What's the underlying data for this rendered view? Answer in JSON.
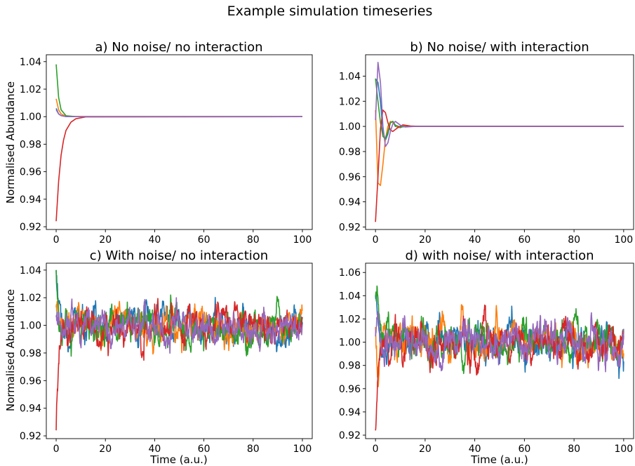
{
  "figure": {
    "suptitle": "Example simulation timeseries",
    "colors": [
      "#1f77b4",
      "#ff7f0e",
      "#2ca02c",
      "#d62728",
      "#9467bd"
    ]
  },
  "chart_data": [
    {
      "type": "line",
      "title": "a) No noise/ no interaction",
      "xlabel": "",
      "ylabel": "Normalised Abundance",
      "xlim": [
        -4,
        104
      ],
      "ylim": [
        0.918,
        1.045
      ],
      "xticks": [
        "0",
        "20",
        "40",
        "60",
        "80",
        "100"
      ],
      "yticks": [
        "0.92",
        "0.94",
        "0.96",
        "0.98",
        "1.00",
        "1.02",
        "1.04"
      ],
      "noise": false,
      "interaction": false,
      "series": [
        {
          "color": "#1f77b4",
          "points": [
            [
              0,
              1.006
            ],
            [
              1,
              1.002
            ],
            [
              2,
              1.0008
            ],
            [
              4,
              1.0001
            ],
            [
              8,
              1.0
            ],
            [
              100,
              1.0
            ]
          ]
        },
        {
          "color": "#ff7f0e",
          "points": [
            [
              0,
              1.013
            ],
            [
              1,
              1.005
            ],
            [
              2,
              1.002
            ],
            [
              4,
              1.0003
            ],
            [
              8,
              1.0
            ],
            [
              100,
              1.0
            ]
          ]
        },
        {
          "color": "#2ca02c",
          "points": [
            [
              0,
              1.038
            ],
            [
              1,
              1.014
            ],
            [
              2,
              1.005
            ],
            [
              4,
              1.0007
            ],
            [
              8,
              1.0
            ],
            [
              100,
              1.0
            ]
          ]
        },
        {
          "color": "#d62728",
          "points": [
            [
              0,
              0.924
            ],
            [
              1,
              0.953
            ],
            [
              2,
              0.972
            ],
            [
              3,
              0.983
            ],
            [
              4,
              0.99
            ],
            [
              6,
              0.996
            ],
            [
              8,
              0.9985
            ],
            [
              12,
              0.9998
            ],
            [
              100,
              1.0
            ]
          ]
        },
        {
          "color": "#9467bd",
          "points": [
            [
              0,
              1.005
            ],
            [
              1,
              1.002
            ],
            [
              2,
              1.0008
            ],
            [
              4,
              1.0001
            ],
            [
              8,
              1.0
            ],
            [
              100,
              1.0
            ]
          ]
        }
      ]
    },
    {
      "type": "line",
      "title": "b) No noise/ with interaction",
      "xlabel": "",
      "ylabel": "",
      "xlim": [
        -4,
        104
      ],
      "ylim": [
        0.918,
        1.057
      ],
      "xticks": [
        "0",
        "20",
        "40",
        "60",
        "80",
        "100"
      ],
      "yticks": [
        "0.92",
        "0.94",
        "0.96",
        "0.98",
        "1.00",
        "1.02",
        "1.04"
      ],
      "noise": false,
      "interaction": true,
      "series": [
        {
          "color": "#1f77b4",
          "points": [
            [
              0,
              1.038
            ],
            [
              1,
              1.035
            ],
            [
              2,
              1.02
            ],
            [
              3,
              0.996
            ],
            [
              4,
              0.989
            ],
            [
              5,
              0.994
            ],
            [
              6,
              1.003
            ],
            [
              7,
              1.004
            ],
            [
              8,
              1.0
            ],
            [
              10,
              0.999
            ],
            [
              12,
              1.0008
            ],
            [
              15,
              1.0
            ],
            [
              100,
              1.0
            ]
          ]
        },
        {
          "color": "#ff7f0e",
          "points": [
            [
              0,
              1.013
            ],
            [
              1,
              0.955
            ],
            [
              2,
              0.953
            ],
            [
              3,
              0.97
            ],
            [
              4,
              0.99
            ],
            [
              5,
              1.0
            ],
            [
              6,
              1.004
            ],
            [
              7,
              1.003
            ],
            [
              9,
              0.999
            ],
            [
              12,
              1.0004
            ],
            [
              16,
              1.0
            ],
            [
              100,
              1.0
            ]
          ]
        },
        {
          "color": "#2ca02c",
          "points": [
            [
              0,
              1.038
            ],
            [
              1,
              1.02
            ],
            [
              2,
              1.003
            ],
            [
              3,
              0.992
            ],
            [
              4,
              0.99
            ],
            [
              5,
              0.996
            ],
            [
              6,
              1.003
            ],
            [
              7,
              1.004
            ],
            [
              8,
              1.001
            ],
            [
              10,
              0.9995
            ],
            [
              14,
              1.0
            ],
            [
              100,
              1.0
            ]
          ]
        },
        {
          "color": "#d62728",
          "points": [
            [
              0,
              0.924
            ],
            [
              1,
              0.96
            ],
            [
              2,
              0.998
            ],
            [
              3,
              1.013
            ],
            [
              4,
              1.011
            ],
            [
              5,
              1.003
            ],
            [
              6,
              0.997
            ],
            [
              7,
              0.996
            ],
            [
              9,
              0.999
            ],
            [
              11,
              1.0012
            ],
            [
              14,
              1.0003
            ],
            [
              18,
              1.0
            ],
            [
              100,
              1.0
            ]
          ]
        },
        {
          "color": "#9467bd",
          "points": [
            [
              0,
              1.005
            ],
            [
              1,
              1.051
            ],
            [
              2,
              1.035
            ],
            [
              3,
              1.0
            ],
            [
              4,
              0.984
            ],
            [
              5,
              0.987
            ],
            [
              6,
              0.996
            ],
            [
              7,
              1.002
            ],
            [
              8,
              1.004
            ],
            [
              10,
              1.001
            ],
            [
              12,
              0.9995
            ],
            [
              16,
              1.0
            ],
            [
              100,
              1.0
            ]
          ]
        }
      ]
    },
    {
      "type": "line",
      "title": "c) With noise/ no interaction",
      "xlabel": "Time (a.u.)",
      "ylabel": "Normalised Abundance",
      "xlim": [
        -4,
        104
      ],
      "ylim": [
        0.918,
        1.045
      ],
      "xticks": [
        "0",
        "20",
        "40",
        "60",
        "80",
        "100"
      ],
      "yticks": [
        "0.92",
        "0.94",
        "0.96",
        "0.98",
        "1.00",
        "1.02",
        "1.04"
      ],
      "noise": true,
      "interaction": false,
      "series": [
        {
          "color": "#1f77b4",
          "start": 1.04,
          "noise_amplitude": 0.007
        },
        {
          "color": "#ff7f0e",
          "start": 1.013,
          "noise_amplitude": 0.007
        },
        {
          "color": "#2ca02c",
          "start": 1.04,
          "noise_amplitude": 0.007
        },
        {
          "color": "#d62728",
          "start": 0.924,
          "noise_amplitude": 0.007
        },
        {
          "color": "#9467bd",
          "start": 1.006,
          "noise_amplitude": 0.007
        }
      ]
    },
    {
      "type": "line",
      "title": "d) with noise/ with interaction",
      "xlabel": "Time (a.u.)",
      "ylabel": "",
      "xlim": [
        -4,
        104
      ],
      "ylim": [
        0.917,
        1.068
      ],
      "xticks": [
        "0",
        "20",
        "40",
        "60",
        "80",
        "100"
      ],
      "yticks": [
        "0.92",
        "0.94",
        "0.96",
        "0.98",
        "1.00",
        "1.02",
        "1.04",
        "1.06"
      ],
      "noise": true,
      "interaction": true,
      "series": [
        {
          "color": "#1f77b4",
          "start": 1.04,
          "noise_amplitude": 0.009
        },
        {
          "color": "#ff7f0e",
          "start": 1.013,
          "noise_amplitude": 0.009
        },
        {
          "color": "#2ca02c",
          "start": 1.04,
          "noise_amplitude": 0.009
        },
        {
          "color": "#d62728",
          "start": 0.924,
          "noise_amplitude": 0.009
        },
        {
          "color": "#9467bd",
          "start": 1.005,
          "noise_amplitude": 0.009
        }
      ]
    }
  ]
}
